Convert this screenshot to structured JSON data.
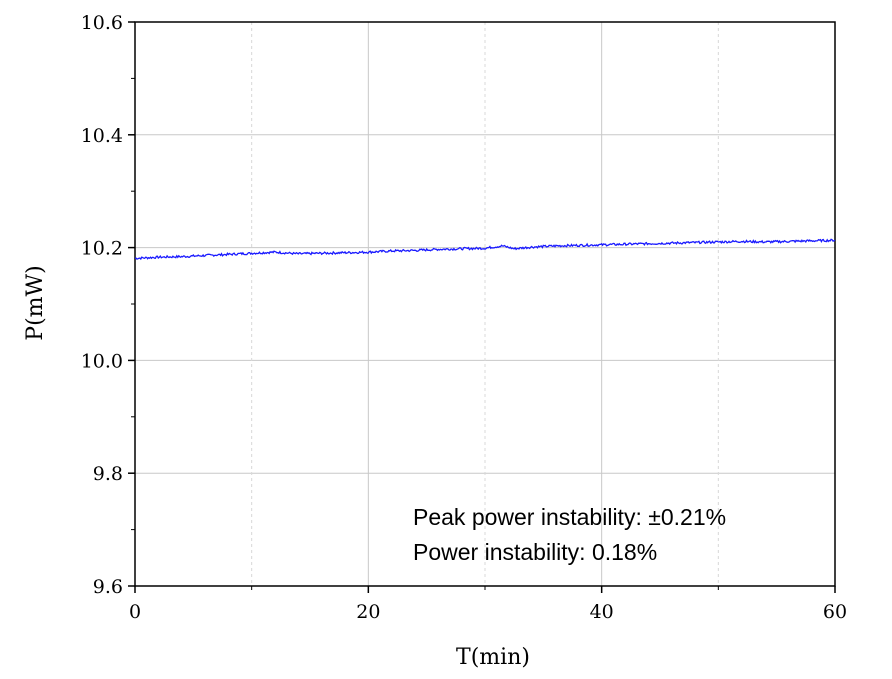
{
  "chart_data": {
    "type": "line",
    "xlabel": "T(min)",
    "ylabel": "P(mW)",
    "xlim": [
      0,
      60
    ],
    "ylim": [
      9.6,
      10.6
    ],
    "x_ticks": [
      0,
      20,
      40,
      60
    ],
    "x_tick_labels": [
      "0",
      "20",
      "40",
      "60"
    ],
    "y_ticks": [
      9.6,
      9.8,
      10.0,
      10.2,
      10.4,
      10.6
    ],
    "y_tick_labels": [
      "9.6",
      "9.8",
      "10.0",
      "10.2",
      "10.4",
      "10.6"
    ],
    "grid": true,
    "series": [
      {
        "color": "#1a1aff",
        "x": [
          0,
          2,
          4,
          6,
          8,
          10,
          12,
          14,
          16,
          18,
          20,
          22,
          24,
          26,
          28,
          30,
          31.5,
          32.5,
          34,
          36,
          38,
          40,
          42,
          44,
          46,
          48,
          50,
          52,
          54,
          56,
          58,
          60
        ],
        "y": [
          10.181,
          10.183,
          10.184,
          10.186,
          10.188,
          10.19,
          10.192,
          10.189,
          10.19,
          10.191,
          10.192,
          10.194,
          10.195,
          10.197,
          10.198,
          10.199,
          10.203,
          10.198,
          10.201,
          10.203,
          10.204,
          10.205,
          10.206,
          10.207,
          10.208,
          10.209,
          10.21,
          10.211,
          10.21,
          10.211,
          10.212,
          10.213
        ]
      }
    ],
    "annotations": [
      "Peak power instability: ±0.21%",
      "Power instability: 0.18%"
    ]
  }
}
